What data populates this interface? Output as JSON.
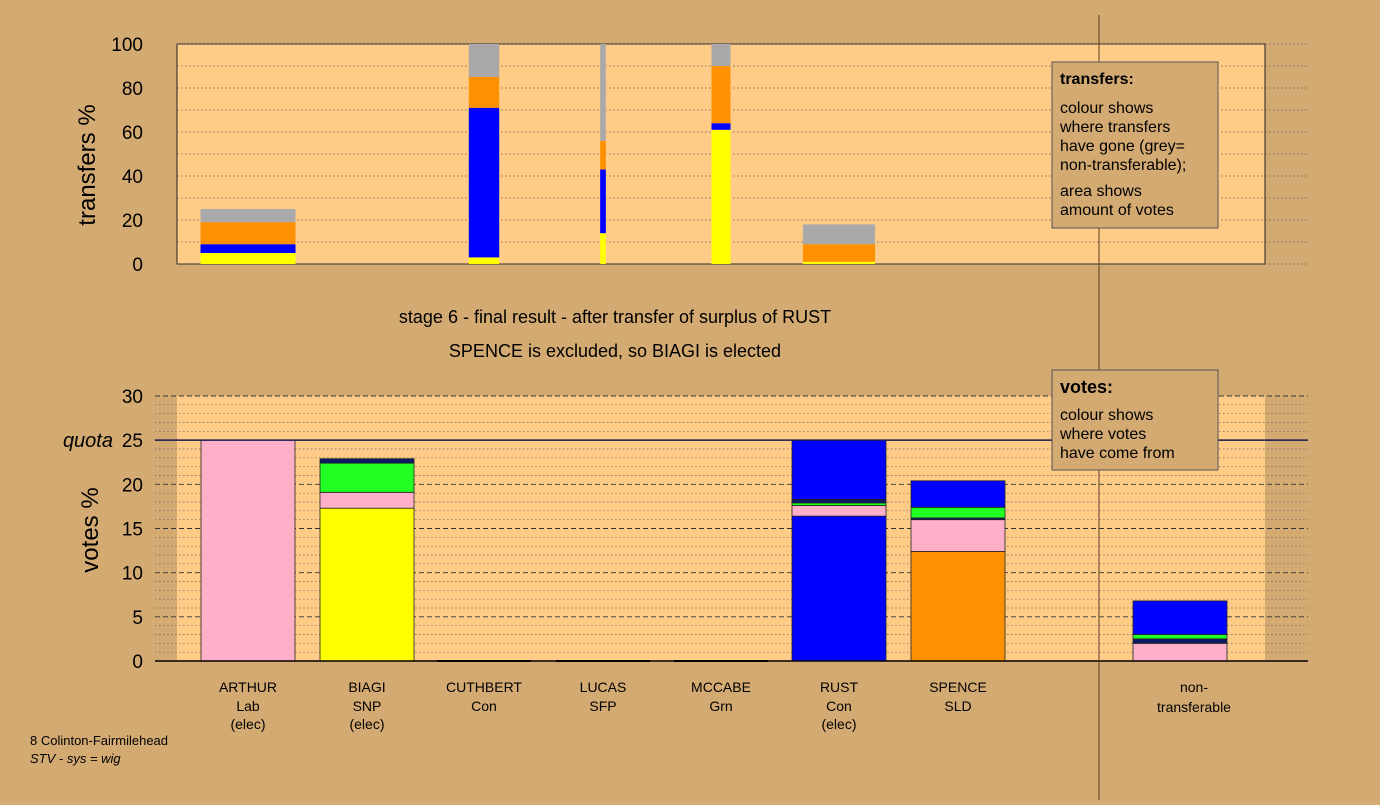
{
  "colors": {
    "background": "#d4aa73",
    "plot_area": "#ffcc88",
    "Lab": "#ffb0c8",
    "SNP": "#ffff00",
    "Grn": "#22ff22",
    "SFP": "#0b1a66",
    "Con": "#0000ff",
    "SLD": "#ff9000",
    "non_transferable": "#a9a9a9"
  },
  "transfers_panel": {
    "ylabel": "transfers %",
    "ticks": [
      "0",
      "20",
      "40",
      "60",
      "80",
      "100"
    ],
    "legend": {
      "title": "transfers:",
      "line1": "colour shows",
      "line2": "where transfers",
      "line3": "have gone (grey=",
      "line4": "non-transferable);",
      "line5": "area shows",
      "line6": "amount of votes"
    }
  },
  "stage": {
    "line1": "stage 6 - final result - after transfer of surplus of RUST",
    "line2": "SPENCE is excluded, so BIAGI is elected"
  },
  "votes_panel": {
    "ylabel": "votes %",
    "quota_label": "quota",
    "ticks": [
      "0",
      "5",
      "10",
      "15",
      "20",
      "25",
      "30"
    ],
    "legend": {
      "title": "votes:",
      "line1": "colour shows",
      "line2": "where votes",
      "line3": "have come from"
    }
  },
  "candidates": [
    {
      "name": "ARTHUR",
      "party": "Lab",
      "status": "(elec)"
    },
    {
      "name": "BIAGI",
      "party": "SNP",
      "status": "(elec)"
    },
    {
      "name": "CUTHBERT",
      "party": "Con",
      "status": ""
    },
    {
      "name": "LUCAS",
      "party": "SFP",
      "status": ""
    },
    {
      "name": "MCCABE",
      "party": "Grn",
      "status": ""
    },
    {
      "name": "RUST",
      "party": "Con",
      "status": "(elec)"
    },
    {
      "name": "SPENCE",
      "party": "SLD",
      "status": ""
    }
  ],
  "nontransferable_label": {
    "line1": "non-",
    "line2": "transferable"
  },
  "footer": {
    "ward": "8 Colinton-Fairmilehead",
    "system": "STV - sys = wig"
  },
  "chart_data": [
    {
      "type": "bar",
      "title": "",
      "ylabel": "transfers %",
      "ylim": [
        0,
        100
      ],
      "stacked": true,
      "columns": [
        {
          "candidate": "ARTHUR",
          "width_share": 0.25,
          "segments": [
            {
              "to": "SNP",
              "color": "#ffff00",
              "value": 5
            },
            {
              "to": "Con",
              "color": "#0000ff",
              "value": 4
            },
            {
              "to": "SLD",
              "color": "#ff9000",
              "value": 10
            },
            {
              "to": "non-transferable",
              "color": "#a9a9a9",
              "value": 6
            }
          ]
        },
        {
          "candidate": "CUTHBERT",
          "width_share": 0.08,
          "segments": [
            {
              "to": "SNP",
              "color": "#ffff00",
              "value": 3
            },
            {
              "to": "Con",
              "color": "#0000ff",
              "value": 68
            },
            {
              "to": "SLD",
              "color": "#ff9000",
              "value": 14
            },
            {
              "to": "non-transferable",
              "color": "#a9a9a9",
              "value": 15
            }
          ]
        },
        {
          "candidate": "LUCAS",
          "width_share": 0.015,
          "segments": [
            {
              "to": "SNP",
              "color": "#ffff00",
              "value": 14
            },
            {
              "to": "Con",
              "color": "#0000ff",
              "value": 29
            },
            {
              "to": "SLD",
              "color": "#ff9000",
              "value": 13
            },
            {
              "to": "non-transferable",
              "color": "#a9a9a9",
              "value": 44
            }
          ]
        },
        {
          "candidate": "MCCABE",
          "width_share": 0.05,
          "segments": [
            {
              "to": "SNP",
              "color": "#ffff00",
              "value": 61
            },
            {
              "to": "Con",
              "color": "#0000ff",
              "value": 3
            },
            {
              "to": "SLD",
              "color": "#ff9000",
              "value": 26
            },
            {
              "to": "non-transferable",
              "color": "#a9a9a9",
              "value": 10
            }
          ]
        },
        {
          "candidate": "RUST",
          "width_share": 0.19,
          "segments": [
            {
              "to": "SNP",
              "color": "#ffff00",
              "value": 1
            },
            {
              "to": "SLD",
              "color": "#ff9000",
              "value": 8
            },
            {
              "to": "non-transferable",
              "color": "#a9a9a9",
              "value": 9
            }
          ]
        }
      ]
    },
    {
      "type": "bar",
      "title": "",
      "ylabel": "votes %",
      "ylim": [
        0,
        30
      ],
      "quota": 25,
      "stacked": true,
      "categories": [
        "ARTHUR",
        "BIAGI",
        "CUTHBERT",
        "LUCAS",
        "MCCABE",
        "RUST",
        "SPENCE",
        "non-transferable"
      ],
      "series": [
        {
          "name": "Lab",
          "color": "#ffb0c8",
          "values": [
            25,
            1.8,
            0,
            0,
            0,
            1.2,
            3.6,
            2.0
          ]
        },
        {
          "name": "SNP",
          "color": "#ffff00",
          "values": [
            0,
            17.3,
            0,
            0,
            0,
            0,
            0,
            0
          ]
        },
        {
          "name": "Grn",
          "color": "#22ff22",
          "values": [
            0,
            3.3,
            0,
            0,
            0,
            0.3,
            1.2,
            0.5
          ]
        },
        {
          "name": "SFP",
          "color": "#0b1a66",
          "values": [
            0,
            0.5,
            0,
            0,
            0,
            0.4,
            0.2,
            0.5
          ]
        },
        {
          "name": "Con",
          "color": "#0000ff",
          "values": [
            0,
            0,
            0,
            0,
            0,
            23.1,
            3.0,
            3.8
          ]
        },
        {
          "name": "SLD",
          "color": "#ff9000",
          "values": [
            0,
            0,
            0,
            0,
            0,
            0,
            12.4,
            0
          ]
        }
      ]
    }
  ]
}
